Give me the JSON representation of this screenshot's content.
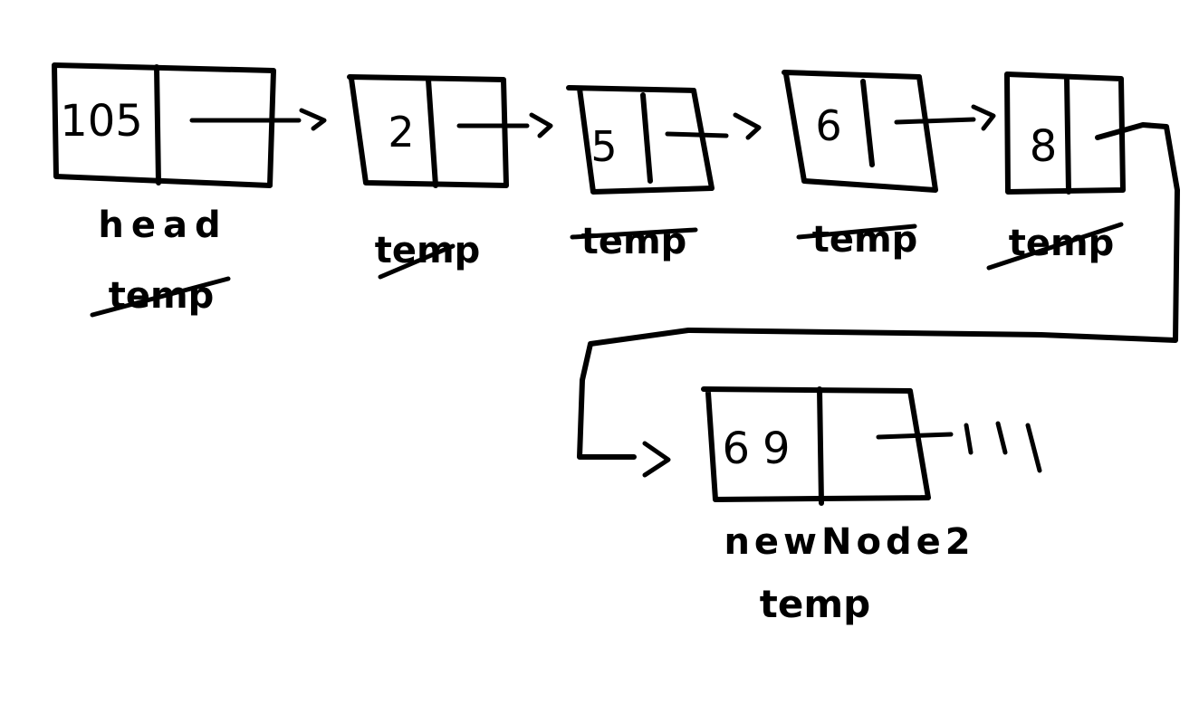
{
  "colors": {
    "ink": "#000000",
    "background": "#ffffff"
  },
  "nodes": [
    {
      "id": "node-105",
      "value": "105",
      "labels": [
        {
          "text": "head",
          "struck": false
        },
        {
          "text": "temp",
          "struck": true
        }
      ]
    },
    {
      "id": "node-2",
      "value": "2",
      "labels": [
        {
          "text": "temp",
          "struck": true
        }
      ]
    },
    {
      "id": "node-5",
      "value": "5",
      "labels": [
        {
          "text": "temp",
          "struck": true
        }
      ]
    },
    {
      "id": "node-6",
      "value": "6",
      "labels": [
        {
          "text": "temp",
          "struck": true
        }
      ]
    },
    {
      "id": "node-8",
      "value": "8",
      "labels": [
        {
          "text": "temp",
          "struck": true
        }
      ]
    },
    {
      "id": "node-69",
      "value": "69",
      "labels": [
        {
          "text": "newNode2",
          "struck": false
        },
        {
          "text": "temp",
          "struck": false
        }
      ]
    }
  ],
  "links": [
    {
      "from": "node-105",
      "to": "node-2"
    },
    {
      "from": "node-2",
      "to": "node-5"
    },
    {
      "from": "node-5",
      "to": "node-6"
    },
    {
      "from": "node-6",
      "to": "node-8"
    },
    {
      "from": "node-8",
      "to": "node-69"
    }
  ],
  "terminator": {
    "after": "node-69",
    "symbol": "null-ground"
  }
}
